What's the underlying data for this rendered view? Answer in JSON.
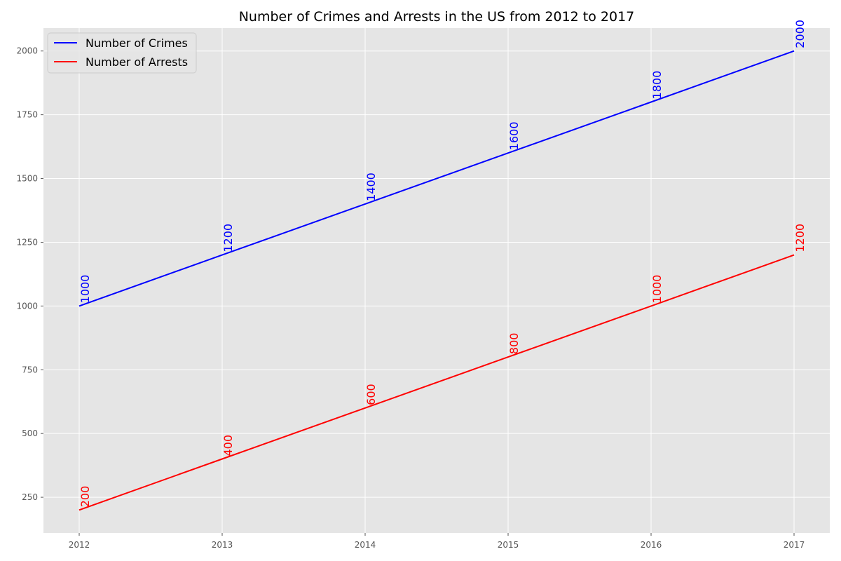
{
  "chart_data": {
    "type": "line",
    "title": "Number of Crimes and Arrests in the US from 2012 to 2017",
    "xlabel": "",
    "ylabel": "",
    "x": [
      2012,
      2013,
      2014,
      2015,
      2016,
      2017
    ],
    "xlim": [
      2011.75,
      2017.25
    ],
    "ylim": [
      110,
      2090
    ],
    "yticks": [
      250,
      500,
      750,
      1000,
      1250,
      1500,
      1750,
      2000
    ],
    "grid": true,
    "legend_position": "top-left",
    "background_color": "#e5e5e5",
    "grid_color": "#ffffff",
    "series": [
      {
        "name": "Number of Crimes",
        "color": "#0000ff",
        "values": [
          1000,
          1200,
          1400,
          1600,
          1800,
          2000
        ],
        "labels": [
          "1000",
          "1200",
          "1400",
          "1600",
          "1800",
          "2000"
        ]
      },
      {
        "name": "Number of Arrests",
        "color": "#ff0000",
        "values": [
          200,
          400,
          600,
          800,
          1000,
          1200
        ],
        "labels": [
          "200",
          "400",
          "600",
          "800",
          "1000",
          "1200"
        ]
      }
    ]
  }
}
